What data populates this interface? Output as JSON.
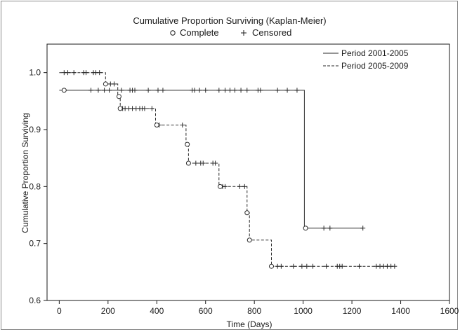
{
  "chart_data": {
    "type": "line",
    "title": "Cumulative Proportion Surviving (Kaplan-Meier)",
    "subtitle_complete": "Complete",
    "subtitle_censored": "Censored",
    "xlabel": "Time (Days)",
    "ylabel": "Cumulative Proportion Surviving",
    "xlim": [
      -50,
      1600
    ],
    "ylim": [
      0.6,
      1.05
    ],
    "x_ticks": [
      "0",
      "200",
      "400",
      "600",
      "800",
      "1000",
      "1200",
      "1400",
      "1600"
    ],
    "y_ticks": [
      "0.6",
      "0.7",
      "0.8",
      "0.9",
      "1.0"
    ],
    "x_tick_values": [
      0,
      200,
      400,
      600,
      800,
      1000,
      1200,
      1400,
      1600
    ],
    "y_tick_values": [
      0.6,
      0.7,
      0.8,
      0.9,
      1.0
    ],
    "grid": false,
    "legend_position": "top-right",
    "series": [
      {
        "name": "Period 2001-2005",
        "line_style": "solid",
        "steps": [
          [
            0,
            0.969
          ],
          [
            1005,
            0.969
          ],
          [
            1005,
            0.727
          ],
          [
            1245,
            0.727
          ]
        ],
        "complete": [
          [
            20,
            0.969
          ],
          [
            1010,
            0.727
          ]
        ],
        "censored": [
          [
            130,
            0.969
          ],
          [
            160,
            0.969
          ],
          [
            185,
            0.969
          ],
          [
            205,
            0.969
          ],
          [
            255,
            0.969
          ],
          [
            290,
            0.969
          ],
          [
            300,
            0.969
          ],
          [
            310,
            0.969
          ],
          [
            365,
            0.969
          ],
          [
            405,
            0.969
          ],
          [
            425,
            0.969
          ],
          [
            545,
            0.969
          ],
          [
            555,
            0.969
          ],
          [
            575,
            0.969
          ],
          [
            600,
            0.969
          ],
          [
            655,
            0.969
          ],
          [
            680,
            0.969
          ],
          [
            700,
            0.969
          ],
          [
            720,
            0.969
          ],
          [
            745,
            0.969
          ],
          [
            770,
            0.969
          ],
          [
            815,
            0.969
          ],
          [
            825,
            0.969
          ],
          [
            895,
            0.969
          ],
          [
            935,
            0.969
          ],
          [
            975,
            0.969
          ],
          [
            1085,
            0.727
          ],
          [
            1110,
            0.727
          ],
          [
            1245,
            0.727
          ]
        ]
      },
      {
        "name": "Period 2005-2009",
        "line_style": "dashed",
        "steps": [
          [
            0,
            1.0
          ],
          [
            190,
            1.0
          ],
          [
            190,
            0.98
          ],
          [
            240,
            0.98
          ],
          [
            240,
            0.958
          ],
          [
            250,
            0.958
          ],
          [
            250,
            0.937
          ],
          [
            395,
            0.937
          ],
          [
            395,
            0.908
          ],
          [
            520,
            0.908
          ],
          [
            520,
            0.874
          ],
          [
            530,
            0.874
          ],
          [
            530,
            0.841
          ],
          [
            655,
            0.841
          ],
          [
            655,
            0.8
          ],
          [
            770,
            0.8
          ],
          [
            770,
            0.754
          ],
          [
            780,
            0.754
          ],
          [
            780,
            0.706
          ],
          [
            870,
            0.706
          ],
          [
            870,
            0.66
          ],
          [
            1375,
            0.66
          ]
        ],
        "complete": [
          [
            190,
            0.98
          ],
          [
            245,
            0.958
          ],
          [
            250,
            0.937
          ],
          [
            400,
            0.908
          ],
          [
            525,
            0.874
          ],
          [
            530,
            0.841
          ],
          [
            660,
            0.8
          ],
          [
            770,
            0.754
          ],
          [
            780,
            0.706
          ],
          [
            870,
            0.66
          ]
        ],
        "censored": [
          [
            20,
            1.0
          ],
          [
            35,
            1.0
          ],
          [
            60,
            1.0
          ],
          [
            100,
            1.0
          ],
          [
            110,
            1.0
          ],
          [
            140,
            1.0
          ],
          [
            150,
            1.0
          ],
          [
            165,
            1.0
          ],
          [
            210,
            0.98
          ],
          [
            225,
            0.98
          ],
          [
            260,
            0.937
          ],
          [
            270,
            0.937
          ],
          [
            285,
            0.937
          ],
          [
            300,
            0.937
          ],
          [
            315,
            0.937
          ],
          [
            330,
            0.937
          ],
          [
            340,
            0.937
          ],
          [
            350,
            0.937
          ],
          [
            380,
            0.937
          ],
          [
            410,
            0.908
          ],
          [
            505,
            0.908
          ],
          [
            560,
            0.841
          ],
          [
            580,
            0.841
          ],
          [
            590,
            0.841
          ],
          [
            630,
            0.841
          ],
          [
            640,
            0.841
          ],
          [
            670,
            0.8
          ],
          [
            680,
            0.8
          ],
          [
            740,
            0.8
          ],
          [
            760,
            0.8
          ],
          [
            895,
            0.66
          ],
          [
            910,
            0.66
          ],
          [
            960,
            0.66
          ],
          [
            995,
            0.66
          ],
          [
            1015,
            0.66
          ],
          [
            1040,
            0.66
          ],
          [
            1095,
            0.66
          ],
          [
            1140,
            0.66
          ],
          [
            1150,
            0.66
          ],
          [
            1160,
            0.66
          ],
          [
            1230,
            0.66
          ],
          [
            1300,
            0.66
          ],
          [
            1315,
            0.66
          ],
          [
            1330,
            0.66
          ],
          [
            1345,
            0.66
          ],
          [
            1360,
            0.66
          ],
          [
            1375,
            0.66
          ]
        ]
      }
    ]
  }
}
